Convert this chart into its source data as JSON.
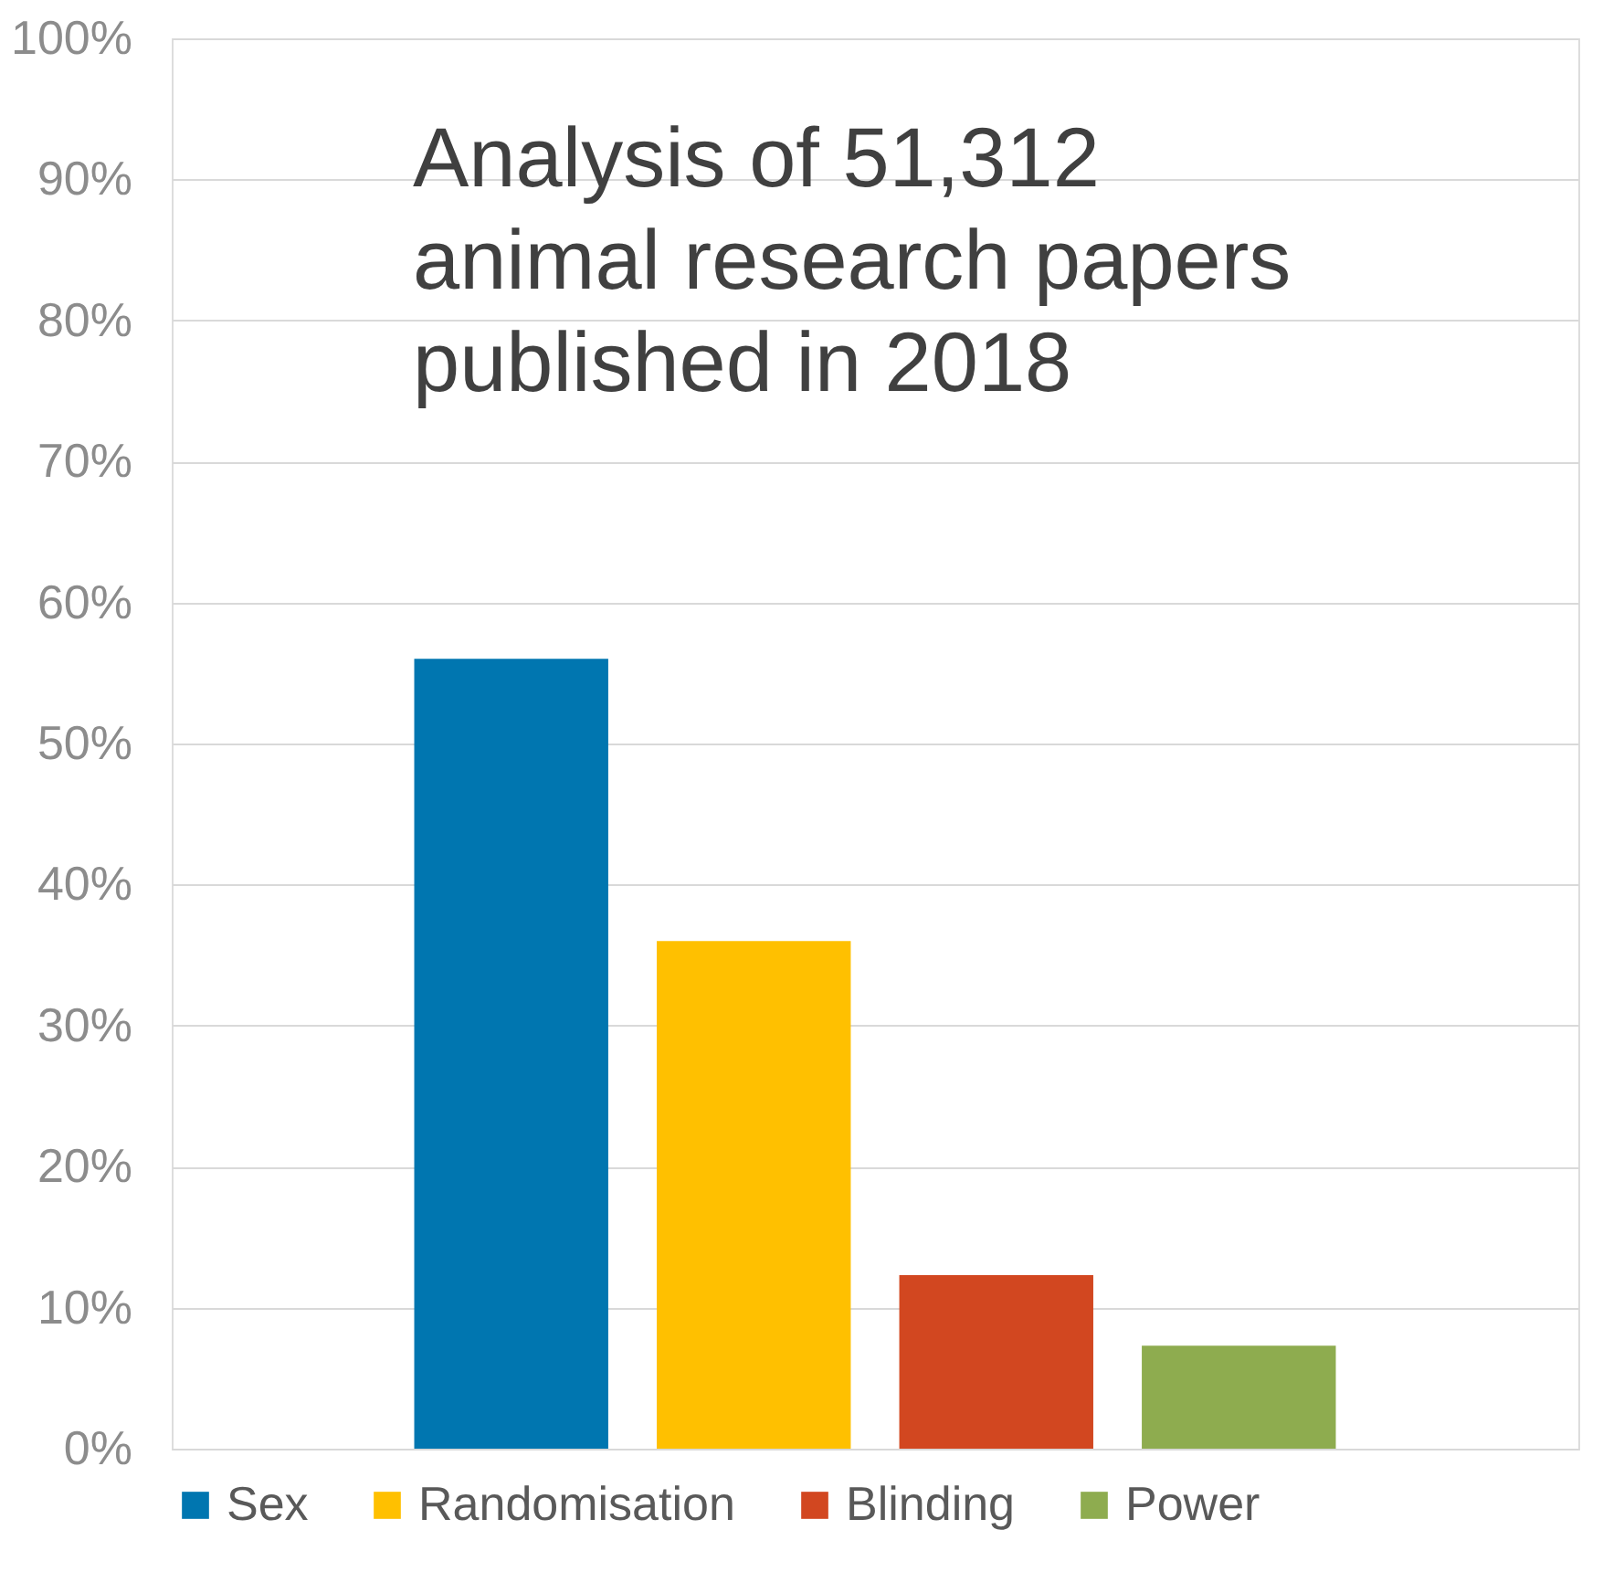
{
  "chart_data": {
    "type": "bar",
    "categories": [
      null
    ],
    "series": [
      {
        "name": "Sex",
        "color": "#0076b0",
        "values": [
          56
        ]
      },
      {
        "name": "Randomisation",
        "color": "#ffc000",
        "values": [
          36
        ]
      },
      {
        "name": "Blinding",
        "color": "#d24720",
        "values": [
          12.3
        ]
      },
      {
        "name": "Power",
        "color": "#8eac4f",
        "values": [
          7.3
        ]
      }
    ],
    "ylim": [
      0,
      100
    ],
    "yticks": [
      {
        "value": 0,
        "label": "0%"
      },
      {
        "value": 10,
        "label": "10%"
      },
      {
        "value": 20,
        "label": "20%"
      },
      {
        "value": 30,
        "label": "30%"
      },
      {
        "value": 40,
        "label": "40%"
      },
      {
        "value": 50,
        "label": "50%"
      },
      {
        "value": 60,
        "label": "60%"
      },
      {
        "value": 70,
        "label": "70%"
      },
      {
        "value": 80,
        "label": "80%"
      },
      {
        "value": 90,
        "label": "90%"
      },
      {
        "value": 100,
        "label": "100%"
      }
    ],
    "annotations": [
      "Analysis of 51,312\nanimal research papers\npublished in 2018"
    ],
    "grid": "y",
    "legend": "bottom",
    "tick_labels": "y"
  }
}
